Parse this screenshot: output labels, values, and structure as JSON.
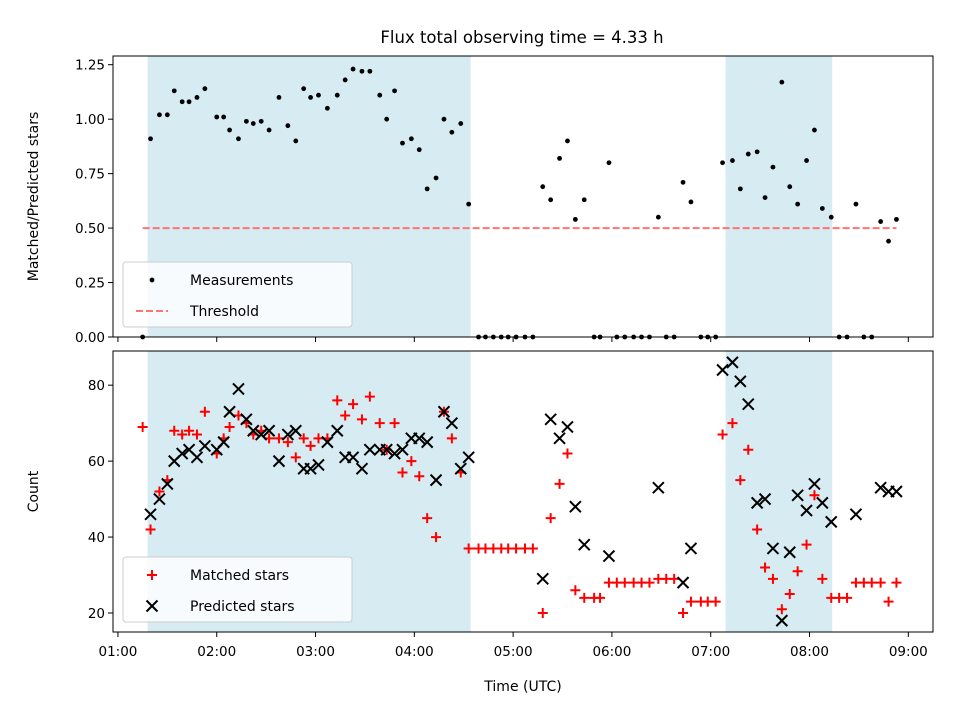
{
  "title": "Flux total observing time = 4.33 h",
  "colors": {
    "shade": "#add8e6",
    "measurements": "#000000",
    "threshold": "#ff7373",
    "matched": "#ff0000",
    "predicted": "#000000"
  },
  "chart_data": [
    {
      "type": "scatter",
      "panel": "top",
      "ylabel": "Matched/Predicted stars",
      "xlabel": "",
      "xlim": [
        0.95,
        9.25
      ],
      "ylim": [
        0.0,
        1.29
      ],
      "yticks": [
        0.0,
        0.25,
        0.5,
        0.75,
        1.0,
        1.25
      ],
      "ytick_labels": [
        "0.00",
        "0.25",
        "0.50",
        "0.75",
        "1.00",
        "1.25"
      ],
      "xticks": [
        1,
        2,
        3,
        4,
        5,
        6,
        7,
        8,
        9
      ],
      "shaded_intervals": [
        [
          1.3,
          4.57
        ],
        [
          7.15,
          8.23
        ]
      ],
      "threshold": {
        "y": 0.5,
        "x_range": [
          1.25,
          8.88
        ]
      },
      "legend": {
        "position": "lower-left",
        "entries": [
          "Measurements",
          "Threshold"
        ]
      },
      "series": [
        {
          "name": "Measurements",
          "marker": "dot",
          "points": [
            [
              1.25,
              0.0
            ],
            [
              1.33,
              0.91
            ],
            [
              1.42,
              1.02
            ],
            [
              1.5,
              1.02
            ],
            [
              1.57,
              1.13
            ],
            [
              1.65,
              1.08
            ],
            [
              1.72,
              1.08
            ],
            [
              1.8,
              1.1
            ],
            [
              1.88,
              1.14
            ],
            [
              2.0,
              1.01
            ],
            [
              2.07,
              1.01
            ],
            [
              2.13,
              0.95
            ],
            [
              2.22,
              0.91
            ],
            [
              2.3,
              0.99
            ],
            [
              2.37,
              0.98
            ],
            [
              2.45,
              0.99
            ],
            [
              2.53,
              0.95
            ],
            [
              2.63,
              1.1
            ],
            [
              2.72,
              0.97
            ],
            [
              2.8,
              0.9
            ],
            [
              2.88,
              1.14
            ],
            [
              2.95,
              1.1
            ],
            [
              3.03,
              1.11
            ],
            [
              3.12,
              1.05
            ],
            [
              3.22,
              1.11
            ],
            [
              3.3,
              1.18
            ],
            [
              3.38,
              1.23
            ],
            [
              3.47,
              1.22
            ],
            [
              3.55,
              1.22
            ],
            [
              3.65,
              1.11
            ],
            [
              3.72,
              1.0
            ],
            [
              3.8,
              1.13
            ],
            [
              3.88,
              0.89
            ],
            [
              3.97,
              0.91
            ],
            [
              4.05,
              0.86
            ],
            [
              4.13,
              0.68
            ],
            [
              4.22,
              0.73
            ],
            [
              4.3,
              1.0
            ],
            [
              4.38,
              0.94
            ],
            [
              4.47,
              0.98
            ],
            [
              4.55,
              0.61
            ],
            [
              4.65,
              0.0
            ],
            [
              4.72,
              0.0
            ],
            [
              4.8,
              0.0
            ],
            [
              4.88,
              0.0
            ],
            [
              4.95,
              0.0
            ],
            [
              5.03,
              0.0
            ],
            [
              5.12,
              0.0
            ],
            [
              5.2,
              0.0
            ],
            [
              5.3,
              0.69
            ],
            [
              5.38,
              0.63
            ],
            [
              5.47,
              0.82
            ],
            [
              5.55,
              0.9
            ],
            [
              5.63,
              0.54
            ],
            [
              5.72,
              0.63
            ],
            [
              5.82,
              0.0
            ],
            [
              5.88,
              0.0
            ],
            [
              5.97,
              0.8
            ],
            [
              6.05,
              0.0
            ],
            [
              6.13,
              0.0
            ],
            [
              6.22,
              0.0
            ],
            [
              6.3,
              0.0
            ],
            [
              6.38,
              0.0
            ],
            [
              6.47,
              0.55
            ],
            [
              6.55,
              0.0
            ],
            [
              6.63,
              0.0
            ],
            [
              6.72,
              0.71
            ],
            [
              6.8,
              0.62
            ],
            [
              6.9,
              0.0
            ],
            [
              6.97,
              0.0
            ],
            [
              7.05,
              0.0
            ],
            [
              7.12,
              0.8
            ],
            [
              7.22,
              0.81
            ],
            [
              7.3,
              0.68
            ],
            [
              7.38,
              0.84
            ],
            [
              7.47,
              0.85
            ],
            [
              7.55,
              0.64
            ],
            [
              7.63,
              0.78
            ],
            [
              7.72,
              1.17
            ],
            [
              7.8,
              0.69
            ],
            [
              7.88,
              0.61
            ],
            [
              7.97,
              0.81
            ],
            [
              8.05,
              0.95
            ],
            [
              8.13,
              0.59
            ],
            [
              8.22,
              0.55
            ],
            [
              8.3,
              0.0
            ],
            [
              8.38,
              0.0
            ],
            [
              8.47,
              0.61
            ],
            [
              8.55,
              0.0
            ],
            [
              8.63,
              0.0
            ],
            [
              8.72,
              0.53
            ],
            [
              8.8,
              0.44
            ],
            [
              8.88,
              0.54
            ]
          ]
        }
      ]
    },
    {
      "type": "scatter",
      "panel": "bottom",
      "ylabel": "Count",
      "xlabel": "Time (UTC)",
      "xlim": [
        0.95,
        9.25
      ],
      "ylim": [
        15.0,
        89.0
      ],
      "yticks": [
        20,
        40,
        60,
        80
      ],
      "ytick_labels": [
        "20",
        "40",
        "60",
        "80"
      ],
      "xticks": [
        1,
        2,
        3,
        4,
        5,
        6,
        7,
        8,
        9
      ],
      "xtick_labels": [
        "01:00",
        "02:00",
        "03:00",
        "04:00",
        "05:00",
        "06:00",
        "07:00",
        "08:00",
        "09:00"
      ],
      "shaded_intervals": [
        [
          1.3,
          4.57
        ],
        [
          7.15,
          8.23
        ]
      ],
      "legend": {
        "position": "lower-left",
        "entries": [
          "Matched stars",
          "Predicted stars"
        ]
      },
      "series": [
        {
          "name": "Matched stars",
          "marker": "plus",
          "points": [
            [
              1.25,
              69
            ],
            [
              1.33,
              42
            ],
            [
              1.42,
              52
            ],
            [
              1.5,
              55
            ],
            [
              1.57,
              68
            ],
            [
              1.65,
              67
            ],
            [
              1.72,
              68
            ],
            [
              1.8,
              67
            ],
            [
              1.88,
              73
            ],
            [
              2.0,
              62
            ],
            [
              2.07,
              66
            ],
            [
              2.13,
              69
            ],
            [
              2.22,
              72
            ],
            [
              2.3,
              70
            ],
            [
              2.37,
              67
            ],
            [
              2.45,
              68
            ],
            [
              2.53,
              66
            ],
            [
              2.63,
              66
            ],
            [
              2.72,
              65
            ],
            [
              2.8,
              61
            ],
            [
              2.88,
              66
            ],
            [
              2.95,
              64
            ],
            [
              3.03,
              66
            ],
            [
              3.12,
              66
            ],
            [
              3.22,
              76
            ],
            [
              3.3,
              72
            ],
            [
              3.38,
              75
            ],
            [
              3.47,
              71
            ],
            [
              3.55,
              77
            ],
            [
              3.65,
              70
            ],
            [
              3.72,
              63
            ],
            [
              3.8,
              70
            ],
            [
              3.88,
              57
            ],
            [
              3.97,
              60
            ],
            [
              4.05,
              56
            ],
            [
              4.13,
              45
            ],
            [
              4.22,
              40
            ],
            [
              4.3,
              73
            ],
            [
              4.38,
              66
            ],
            [
              4.47,
              57
            ],
            [
              4.55,
              37
            ],
            [
              4.65,
              37
            ],
            [
              4.72,
              37
            ],
            [
              4.8,
              37
            ],
            [
              4.88,
              37
            ],
            [
              4.95,
              37
            ],
            [
              5.03,
              37
            ],
            [
              5.12,
              37
            ],
            [
              5.2,
              37
            ],
            [
              5.3,
              20
            ],
            [
              5.38,
              45
            ],
            [
              5.47,
              54
            ],
            [
              5.55,
              62
            ],
            [
              5.63,
              26
            ],
            [
              5.72,
              24
            ],
            [
              5.82,
              24
            ],
            [
              5.88,
              24
            ],
            [
              5.97,
              28
            ],
            [
              6.05,
              28
            ],
            [
              6.13,
              28
            ],
            [
              6.22,
              28
            ],
            [
              6.3,
              28
            ],
            [
              6.38,
              28
            ],
            [
              6.47,
              29
            ],
            [
              6.55,
              29
            ],
            [
              6.63,
              29
            ],
            [
              6.72,
              20
            ],
            [
              6.8,
              23
            ],
            [
              6.9,
              23
            ],
            [
              6.97,
              23
            ],
            [
              7.05,
              23
            ],
            [
              7.12,
              67
            ],
            [
              7.22,
              70
            ],
            [
              7.3,
              55
            ],
            [
              7.38,
              63
            ],
            [
              7.47,
              42
            ],
            [
              7.55,
              32
            ],
            [
              7.63,
              29
            ],
            [
              7.72,
              21
            ],
            [
              7.8,
              25
            ],
            [
              7.88,
              31
            ],
            [
              7.97,
              38
            ],
            [
              8.05,
              51
            ],
            [
              8.13,
              29
            ],
            [
              8.22,
              24
            ],
            [
              8.3,
              24
            ],
            [
              8.38,
              24
            ],
            [
              8.47,
              28
            ],
            [
              8.55,
              28
            ],
            [
              8.63,
              28
            ],
            [
              8.72,
              28
            ],
            [
              8.8,
              23
            ],
            [
              8.88,
              28
            ]
          ]
        },
        {
          "name": "Predicted stars",
          "marker": "x",
          "points": [
            [
              1.33,
              46
            ],
            [
              1.42,
              50
            ],
            [
              1.5,
              54
            ],
            [
              1.57,
              60
            ],
            [
              1.65,
              62
            ],
            [
              1.72,
              63
            ],
            [
              1.8,
              61
            ],
            [
              1.88,
              64
            ],
            [
              2.0,
              63
            ],
            [
              2.07,
              65
            ],
            [
              2.13,
              73
            ],
            [
              2.22,
              79
            ],
            [
              2.3,
              71
            ],
            [
              2.37,
              68
            ],
            [
              2.45,
              67
            ],
            [
              2.53,
              68
            ],
            [
              2.63,
              60
            ],
            [
              2.72,
              67
            ],
            [
              2.8,
              68
            ],
            [
              2.88,
              58
            ],
            [
              2.95,
              58
            ],
            [
              3.03,
              59
            ],
            [
              3.12,
              65
            ],
            [
              3.22,
              68
            ],
            [
              3.3,
              61
            ],
            [
              3.38,
              61
            ],
            [
              3.47,
              58
            ],
            [
              3.55,
              63
            ],
            [
              3.65,
              63
            ],
            [
              3.72,
              63
            ],
            [
              3.8,
              62
            ],
            [
              3.88,
              63
            ],
            [
              3.97,
              66
            ],
            [
              4.05,
              66
            ],
            [
              4.13,
              65
            ],
            [
              4.22,
              55
            ],
            [
              4.3,
              73
            ],
            [
              4.38,
              70
            ],
            [
              4.47,
              58
            ],
            [
              4.55,
              61
            ],
            [
              5.3,
              29
            ],
            [
              5.38,
              71
            ],
            [
              5.47,
              66
            ],
            [
              5.55,
              69
            ],
            [
              5.63,
              48
            ],
            [
              5.72,
              38
            ],
            [
              5.97,
              35
            ],
            [
              6.47,
              53
            ],
            [
              6.72,
              28
            ],
            [
              6.8,
              37
            ],
            [
              7.12,
              84
            ],
            [
              7.22,
              86
            ],
            [
              7.3,
              81
            ],
            [
              7.38,
              75
            ],
            [
              7.47,
              49
            ],
            [
              7.55,
              50
            ],
            [
              7.63,
              37
            ],
            [
              7.72,
              18
            ],
            [
              7.8,
              36
            ],
            [
              7.88,
              51
            ],
            [
              7.97,
              47
            ],
            [
              8.05,
              54
            ],
            [
              8.13,
              49
            ],
            [
              8.22,
              44
            ],
            [
              8.47,
              46
            ],
            [
              8.72,
              53
            ],
            [
              8.8,
              52
            ],
            [
              8.88,
              52
            ]
          ]
        }
      ]
    }
  ]
}
